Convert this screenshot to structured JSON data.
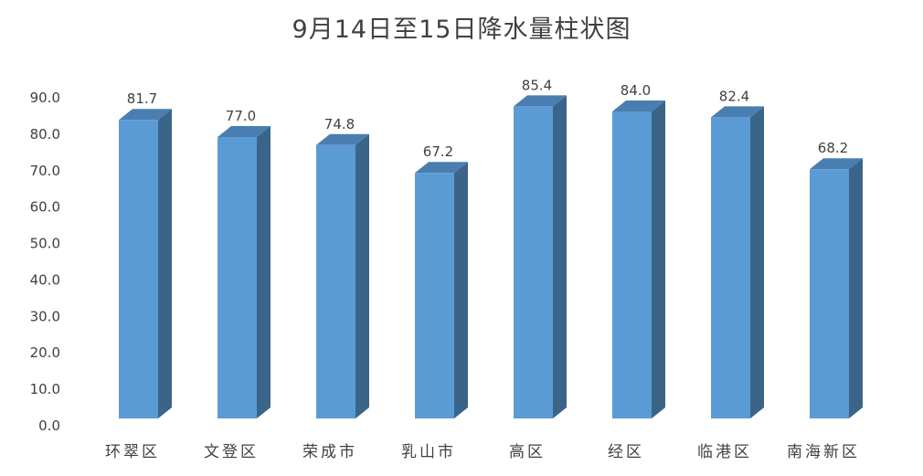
{
  "chart_data": {
    "type": "bar",
    "style": "3d-column",
    "title": "9月14日至15日降水量柱状图",
    "categories": [
      "环翠区",
      "文登区",
      "荣成市",
      "乳山市",
      "高区",
      "经区",
      "临港区",
      "南海新区"
    ],
    "values": [
      81.7,
      77.0,
      74.8,
      67.2,
      85.4,
      84.0,
      82.4,
      68.2
    ],
    "data_labels": [
      "81.7",
      "77.0",
      "74.8",
      "67.2",
      "85.4",
      "84.0",
      "82.4",
      "68.2"
    ],
    "xlabel": "",
    "ylabel": "",
    "ylim": [
      0,
      90
    ],
    "yticks": [
      "0.0",
      "10.0",
      "20.0",
      "30.0",
      "40.0",
      "50.0",
      "60.0",
      "70.0",
      "80.0",
      "90.0"
    ],
    "grid": false,
    "legend": "none",
    "colors": {
      "front": "#5B9BD5",
      "side": "#3A6589",
      "top": "#4A7EB0"
    }
  }
}
